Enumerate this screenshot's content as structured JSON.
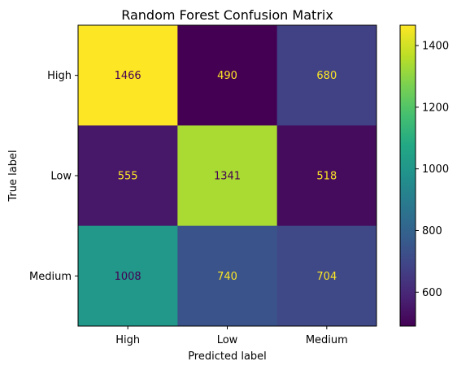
{
  "chart_data": {
    "type": "heatmap",
    "title": "Random Forest Confusion Matrix",
    "xlabel": "Predicted label",
    "ylabel": "True label",
    "x_categories": [
      "High",
      "Low",
      "Medium"
    ],
    "y_categories": [
      "High",
      "Low",
      "Medium"
    ],
    "values": [
      [
        1466,
        490,
        680
      ],
      [
        555,
        1341,
        518
      ],
      [
        1008,
        740,
        704
      ]
    ],
    "colormap": "viridis",
    "colorbar": {
      "range": [
        490,
        1466
      ],
      "ticks": [
        600,
        800,
        1000,
        1200,
        1400
      ]
    },
    "text_colors": {
      "dark": "#440154",
      "light": "#fde725"
    },
    "grid": false
  }
}
